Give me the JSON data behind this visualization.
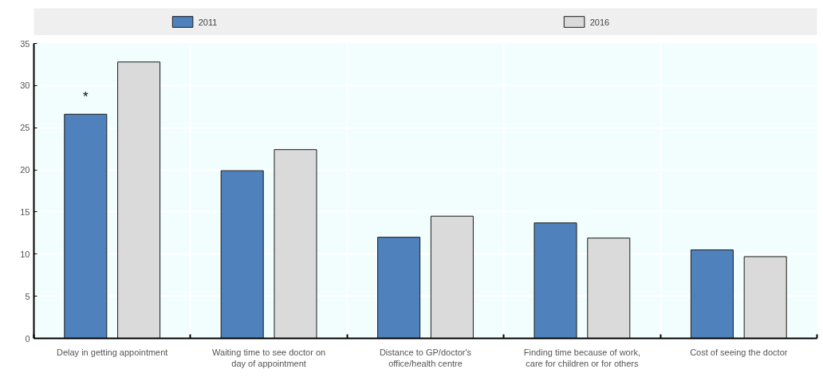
{
  "chart_data": {
    "type": "bar",
    "categories": [
      "Delay in getting appointment",
      "Waiting time to see doctor on day of appointment",
      "Distance to GP/doctor's office/health centre",
      "Finding time because of work, care for children or for others",
      "Cost of seeing the doctor"
    ],
    "series": [
      {
        "name": "2011",
        "color": "#4f81bd",
        "values": [
          26.6,
          19.9,
          12.0,
          13.7,
          10.5
        ]
      },
      {
        "name": "2016",
        "color": "#dadada",
        "values": [
          32.8,
          22.4,
          14.5,
          11.9,
          9.7
        ]
      }
    ],
    "annotations": [
      "*"
    ],
    "ylim": [
      0,
      35
    ],
    "yticks": [
      0,
      5,
      10,
      15,
      20,
      25,
      30,
      35
    ],
    "grid": true,
    "legend": "top"
  }
}
